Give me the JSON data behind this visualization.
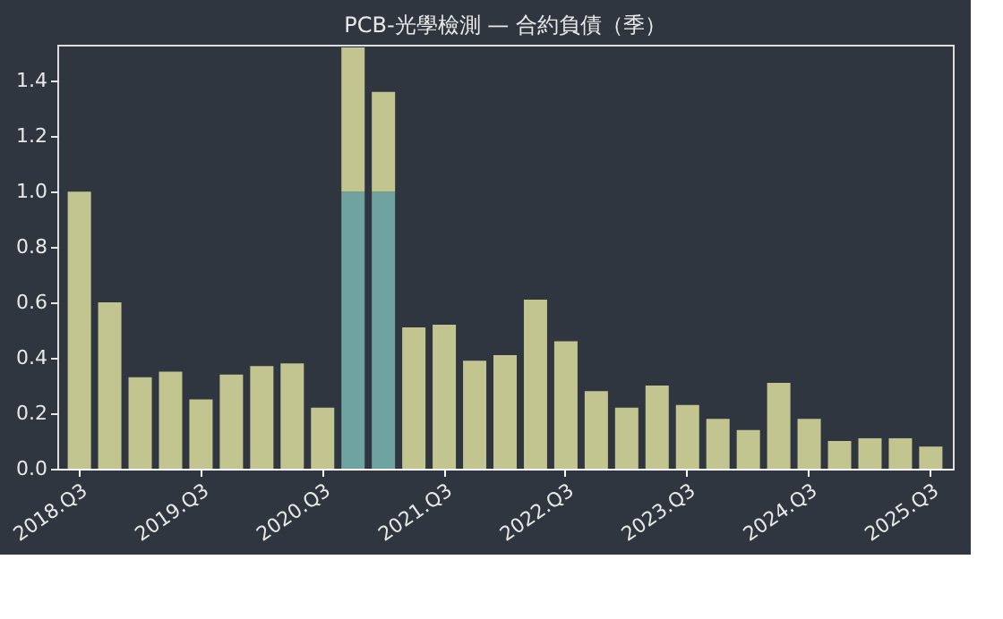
{
  "chart_data": {
    "type": "bar",
    "title": "PCB-光學檢測 — 合約負債（季）",
    "stacked": true,
    "categories": [
      "2018.Q3",
      null,
      null,
      null,
      "2019.Q3",
      null,
      null,
      null,
      "2020.Q3",
      null,
      null,
      null,
      "2021.Q3",
      null,
      null,
      null,
      "2022.Q3",
      null,
      null,
      null,
      "2023.Q3",
      null,
      null,
      null,
      "2024.Q3",
      null,
      null,
      null,
      "2025.Q3"
    ],
    "series": [
      {
        "color": "#6fa3a0",
        "values": [
          null,
          null,
          null,
          null,
          null,
          null,
          null,
          null,
          null,
          1.0,
          1.0,
          null,
          null,
          null,
          null,
          null,
          null,
          null,
          null,
          null,
          null,
          null,
          null,
          null,
          null,
          null,
          null,
          null,
          null
        ]
      },
      {
        "color": "#c2c590",
        "values": [
          1.0,
          0.6,
          0.33,
          0.35,
          0.25,
          0.34,
          0.37,
          0.38,
          0.22,
          0.52,
          0.36,
          0.51,
          0.52,
          0.39,
          0.41,
          0.61,
          0.46,
          0.28,
          0.22,
          0.3,
          0.23,
          0.18,
          0.14,
          0.31,
          0.18,
          0.1,
          0.11,
          0.11,
          0.08
        ]
      }
    ],
    "ylim": [
      0,
      1.53
    ],
    "yticks": [
      {
        "value": 0,
        "label": "0.0"
      },
      0.2,
      0.4,
      0.6,
      0.8,
      {
        "value": 1,
        "label": "1.0"
      },
      1.2,
      1.4
    ],
    "grid": false
  }
}
